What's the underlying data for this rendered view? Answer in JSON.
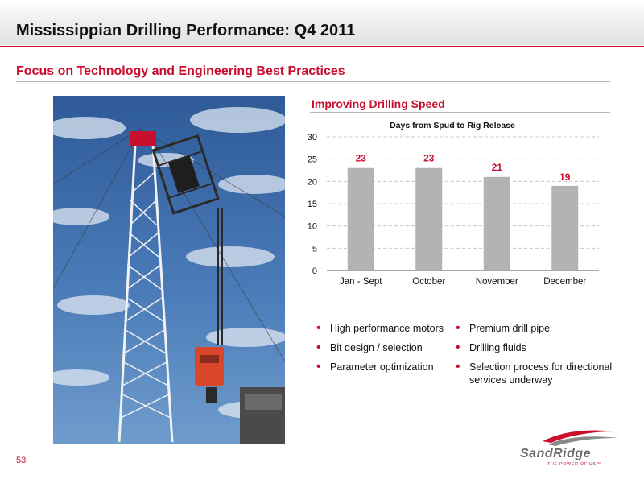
{
  "slide": {
    "title": "Mississippian Drilling Performance: Q4 2011",
    "subtitle": "Focus on Technology and Engineering Best Practices",
    "page_number": "53"
  },
  "chart_heading": "Improving Drilling Speed",
  "chart_data": {
    "type": "bar",
    "title": "Days from Spud to Rig Release",
    "categories": [
      "Jan - Sept",
      "October",
      "November",
      "December"
    ],
    "values": [
      23,
      23,
      21,
      19
    ],
    "value_labels": [
      "23",
      "23",
      "21",
      "19"
    ],
    "ylim": [
      0,
      30
    ],
    "yticks": [
      0,
      5,
      10,
      15,
      20,
      25,
      30
    ],
    "ytick_labels": [
      "0",
      "5",
      "10",
      "15",
      "20",
      "25",
      "30"
    ],
    "xlabel": "",
    "ylabel": "",
    "grid": true,
    "bar_color": "#b3b3b3",
    "label_color": "#c8102e"
  },
  "bullets_left": [
    "High performance motors",
    "Bit design / selection",
    "Parameter optimization"
  ],
  "bullets_right": [
    "Premium drill pipe",
    "Drilling fluids",
    "Selection process for directional services underway"
  ],
  "logo": {
    "brand": "SANDRIDGE",
    "tagline": "THE POWER OF US™"
  },
  "colors": {
    "accent": "#c8102e",
    "sky": "#3b6aa8",
    "rig": "#e9e9e9",
    "block": "#d9472b"
  },
  "photo": {
    "subject": "drilling rig derrick against blue cloudy sky"
  }
}
